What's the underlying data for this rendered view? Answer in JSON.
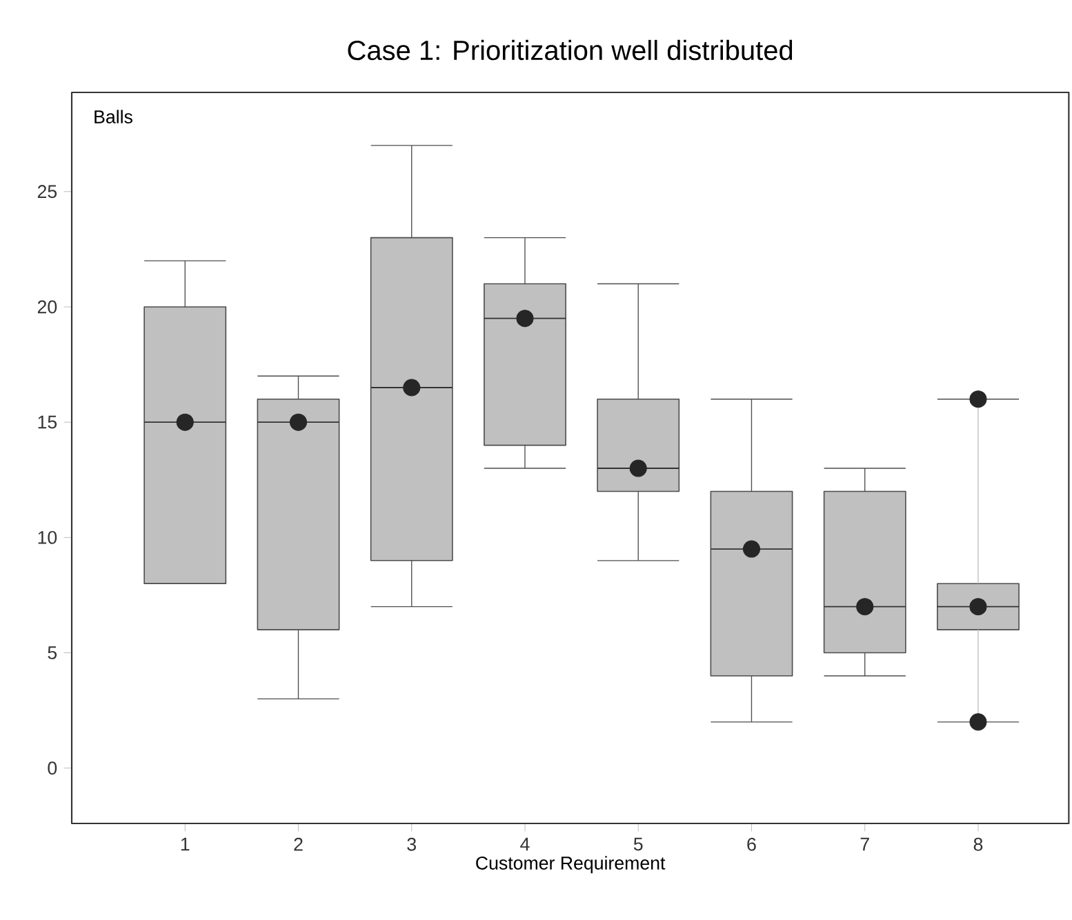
{
  "chart_data": {
    "type": "box",
    "title": "Case 1: Prioritization well distributed",
    "xlabel": "Customer Requirement",
    "ylabel": "Balls",
    "categories": [
      "1",
      "2",
      "3",
      "4",
      "5",
      "6",
      "7",
      "8"
    ],
    "ylim": [
      -2.4,
      29.3
    ],
    "yticks": [
      0,
      5,
      10,
      15,
      20,
      25
    ],
    "grid": false,
    "color": "#c0c0c0",
    "boxes": [
      {
        "low": 8,
        "q1": 8,
        "median": 15,
        "q3": 20,
        "high": 22,
        "mean": 15
      },
      {
        "low": 3,
        "q1": 6,
        "median": 15,
        "q3": 16,
        "high": 17,
        "mean": 15
      },
      {
        "low": 7,
        "q1": 9,
        "median": 16.5,
        "q3": 23,
        "high": 27,
        "mean": 16.5
      },
      {
        "low": 13,
        "q1": 14,
        "median": 19.5,
        "q3": 21,
        "high": 23,
        "mean": 19.5
      },
      {
        "low": 9,
        "q1": 12,
        "median": 13,
        "q3": 16,
        "high": 21,
        "mean": 13
      },
      {
        "low": 2,
        "q1": 4,
        "median": 9.5,
        "q3": 12,
        "high": 16,
        "mean": 9.5
      },
      {
        "low": 4,
        "q1": 5,
        "median": 7,
        "q3": 12,
        "high": 13,
        "mean": 7
      },
      {
        "low": 2,
        "q1": 6,
        "median": 7,
        "q3": 8,
        "high": 16,
        "mean": 7,
        "outliers": [
          16,
          2
        ]
      }
    ]
  }
}
